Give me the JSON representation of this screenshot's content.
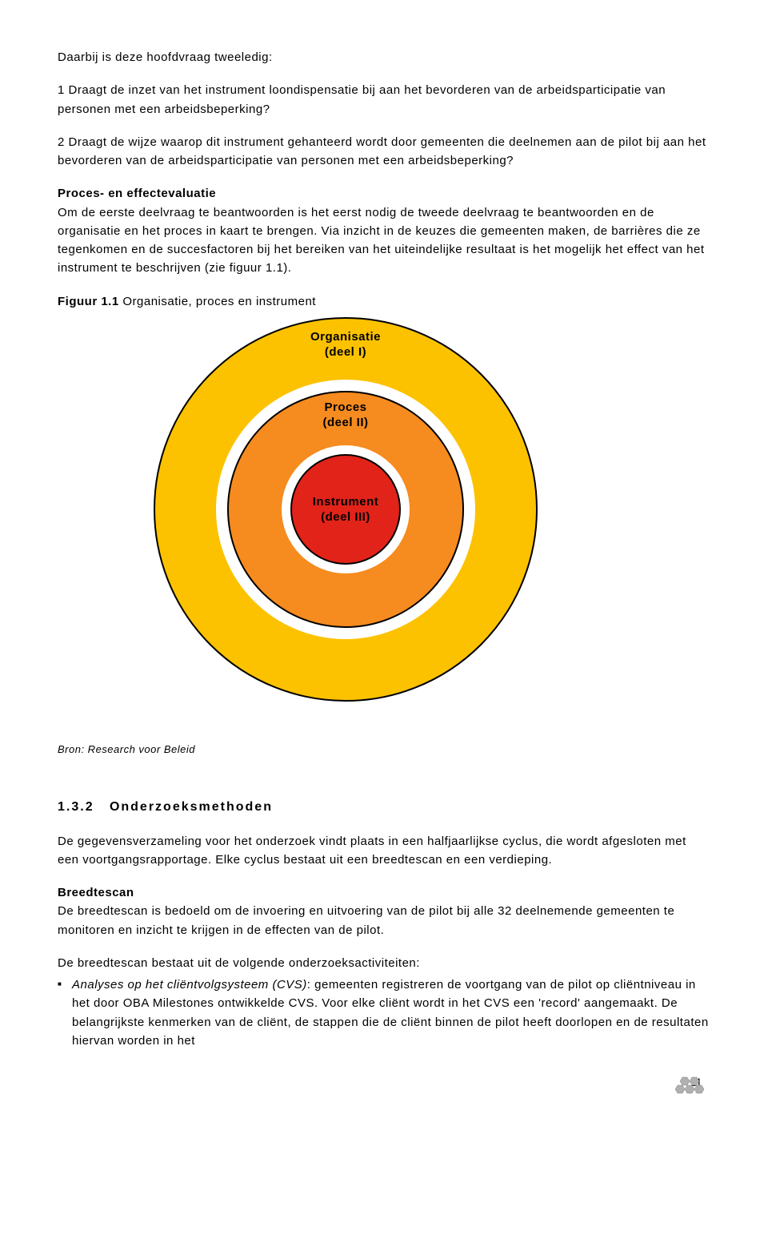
{
  "p1": "Daarbij is deze hoofdvraag tweeledig:",
  "q1": "1  Draagt de inzet van het instrument loondispensatie bij aan het bevorderen van de arbeidsparticipatie van personen met een arbeidsbeperking?",
  "q2": "2  Draagt de wijze waarop dit instrument gehanteerd wordt door gemeenten die deelnemen aan de pilot bij aan het bevorderen van de arbeidsparticipatie van personen met een arbeidsbeperking?",
  "h1": "Proces- en effectevaluatie",
  "p2": "Om de eerste deelvraag te beantwoorden is het eerst nodig de tweede deelvraag te beantwoorden en de organisatie en het proces in kaart te brengen. Via inzicht in de keuzes die gemeenten maken, de barrières die ze tegenkomen en de succesfactoren bij het bereiken van het uiteindelijke resultaat is het mogelijk het effect van het instrument te beschrijven (zie figuur 1.1).",
  "fig_label": "Figuur 1.1",
  "fig_title": " Organisatie, proces en instrument",
  "diagram": {
    "outer": {
      "label1": "Organisatie",
      "label2": "(deel I)",
      "color": "#fcc200",
      "diameter": 480
    },
    "middle_ring": {
      "color": "#ffffff",
      "diameter": 324
    },
    "middle": {
      "label1": "Proces",
      "label2": "(deel II)",
      "color": "#f68b1f",
      "diameter": 296
    },
    "inner_ring": {
      "color": "#ffffff",
      "diameter": 160
    },
    "inner": {
      "label1": "Instrument",
      "label2": "(deel III)",
      "color": "#e2231a",
      "diameter": 138
    }
  },
  "source": "Bron: Research voor Beleid",
  "sec_num": "1.3.2",
  "sec_title": "Onderzoeksmethoden",
  "p3": "De gegevensverzameling voor het onderzoek vindt plaats in een halfjaarlijkse cyclus, die wordt afgesloten met een voortgangsrapportage. Elke cyclus bestaat uit een breedtescan en een verdieping.",
  "h2": "Breedtescan",
  "p4": "De breedtescan is bedoeld om de invoering en uitvoering van de pilot bij alle 32 deelnemende gemeenten te monitoren en inzicht te krijgen in de effecten van de pilot.",
  "p5": "De breedtescan bestaat uit de volgende onderzoeksactiviteiten:",
  "bullet_em": "Analyses op het cliëntvolgsysteem (CVS)",
  "bullet_rest": ": gemeenten registreren de voortgang van de pilot op cliëntniveau in het door OBA Milestones ontwikkelde CVS. Voor elke cliënt wordt in het CVS een 'record' aangemaakt. De belangrijkste kenmerken van de cliënt, de stappen die de cliënt binnen de pilot heeft doorlopen en de resultaten hiervan worden in het",
  "page": "11"
}
